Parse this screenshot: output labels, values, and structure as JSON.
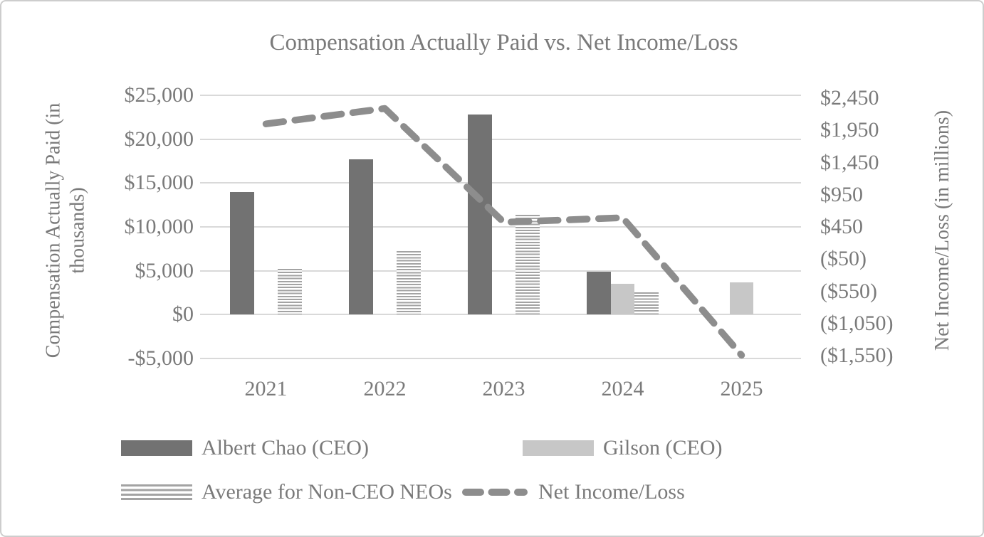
{
  "chart": {
    "title": "Compensation Actually Paid vs. Net Income/Loss",
    "left_axis": {
      "title_line1": "Compensation Actually Paid (in",
      "title_line2": "thousands)",
      "ticks": [
        "$25,000",
        "$20,000",
        "$15,000",
        "$10,000",
        "$5,000",
        "$0",
        "-$5,000"
      ]
    },
    "right_axis": {
      "title": "Net Income/Loss (in millions)",
      "ticks": [
        "$2,450",
        "$1,950",
        "$1,450",
        "$950",
        "$450",
        "($50)",
        "($550)",
        "($1,050)",
        "($1,550)"
      ]
    },
    "x_axis": {
      "ticks": [
        "2021",
        "2022",
        "2023",
        "2024",
        "2025"
      ]
    }
  },
  "legend": {
    "items": [
      {
        "label": "Albert Chao (CEO)",
        "swatch": "solid-dark"
      },
      {
        "label": "Gilson (CEO)",
        "swatch": "solid-light"
      },
      {
        "label": "Average for Non-CEO NEOs",
        "swatch": "striped"
      },
      {
        "label": "Net Income/Loss",
        "swatch": "dashed-line"
      }
    ]
  },
  "chart_data": {
    "type": "combo-bar-line",
    "title": "Compensation Actually Paid vs. Net Income/Loss",
    "categories": [
      2021,
      2022,
      2023,
      2024,
      2025
    ],
    "series": [
      {
        "name": "Albert Chao (CEO)",
        "type": "bar",
        "style": "solid-dark",
        "axis": "left",
        "values": [
          14000,
          17700,
          22800,
          4900,
          null
        ]
      },
      {
        "name": "Gilson (CEO)",
        "type": "bar",
        "style": "solid-light",
        "axis": "left",
        "values": [
          null,
          null,
          null,
          3500,
          3700
        ]
      },
      {
        "name": "Average for Non-CEO NEOs",
        "type": "bar",
        "style": "striped",
        "axis": "left",
        "values": [
          5200,
          7250,
          11350,
          2550,
          null
        ]
      },
      {
        "name": "Net Income/Loss",
        "type": "line",
        "style": "dashed",
        "axis": "right",
        "values": [
          2015,
          2250,
          520,
          590,
          -1500
        ]
      }
    ],
    "left_axis_label": "Compensation Actually Paid (in thousands)",
    "right_axis_label": "Net Income/Loss (in millions)",
    "left_axis_range": [
      -5000,
      25000
    ],
    "right_axis_range": [
      -1550,
      2450
    ],
    "grid": true,
    "legend_position": "bottom"
  },
  "colors": {
    "bar_dark": "#727272",
    "bar_light": "#c7c7c7",
    "stripe": "#a3a3a3",
    "line": "#8d8d8d",
    "gridline": "#d9d9d9",
    "text": "#7a7a7a",
    "frame_border": "#cdcdcd"
  }
}
